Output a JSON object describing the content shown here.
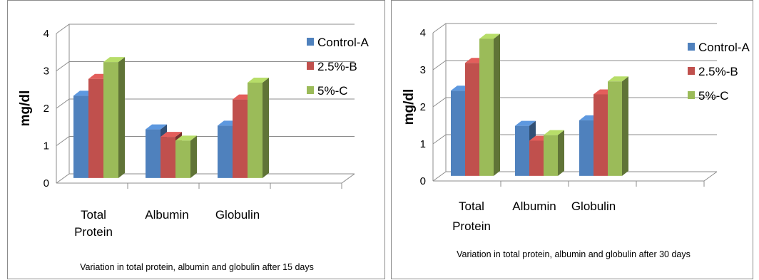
{
  "chart_data": [
    {
      "type": "bar",
      "style": "3d-clustered-column",
      "ylabel": "mg/dl",
      "ylim": [
        0,
        4
      ],
      "yticks": [
        "0",
        "1",
        "2",
        "3",
        "4"
      ],
      "grid": true,
      "legend": "right",
      "categories": [
        [
          "Total",
          "Protein"
        ],
        [
          "Albumin"
        ],
        [
          "Globulin"
        ]
      ],
      "series": [
        {
          "name": "Control-A",
          "color": "#4f81bd",
          "values": [
            2.2,
            1.3,
            1.4
          ]
        },
        {
          "name": "2.5%-B",
          "color": "#c0504d",
          "values": [
            2.65,
            1.1,
            2.1
          ]
        },
        {
          "name": "5%-C",
          "color": "#9bbb59",
          "values": [
            3.1,
            1.0,
            2.55
          ]
        }
      ],
      "caption": "Variation in total protein, albumin and globulin after 15 days"
    },
    {
      "type": "bar",
      "style": "3d-clustered-column",
      "ylabel": "mg/dl",
      "ylim": [
        0,
        4
      ],
      "yticks": [
        "0",
        "1",
        "2",
        "3",
        "4"
      ],
      "grid": true,
      "legend": "right",
      "categories": [
        [
          "Total",
          "Protein"
        ],
        [
          "Albumin"
        ],
        [
          "Globulin"
        ]
      ],
      "series": [
        {
          "name": "Control-A",
          "color": "#4f81bd",
          "values": [
            2.3,
            1.35,
            1.5
          ]
        },
        {
          "name": "2.5%-B",
          "color": "#c0504d",
          "values": [
            3.05,
            0.95,
            2.2
          ]
        },
        {
          "name": "5%-C",
          "color": "#9bbb59",
          "values": [
            3.7,
            1.1,
            2.55
          ]
        }
      ],
      "caption": "Variation in total protein, albumin and globulin after 30 days"
    }
  ]
}
